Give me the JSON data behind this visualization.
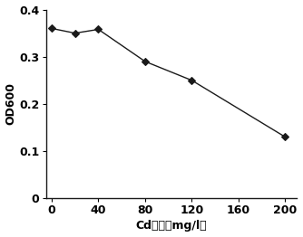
{
  "x": [
    0,
    20,
    40,
    80,
    120,
    200
  ],
  "y": [
    0.36,
    0.35,
    0.358,
    0.29,
    0.25,
    0.13
  ],
  "xlabel": "Cd浓度（mg/l）",
  "ylabel": "OD600",
  "xlim": [
    -5,
    210
  ],
  "ylim": [
    0,
    0.4
  ],
  "xticks": [
    0,
    40,
    80,
    120,
    160,
    200
  ],
  "yticks": [
    0,
    0.1,
    0.2,
    0.3,
    0.4
  ],
  "ytick_labels": [
    "0",
    "0.1",
    "0.2",
    "0.3",
    "0.4"
  ],
  "xtick_labels": [
    "0",
    "40",
    "80",
    "120",
    "160",
    "200"
  ],
  "line_color": "#1a1a1a",
  "marker": "D",
  "marker_size": 4,
  "marker_color": "#1a1a1a",
  "line_width": 1.0,
  "background_color": "#ffffff",
  "xlabel_fontsize": 9,
  "ylabel_fontsize": 9,
  "tick_fontsize": 9
}
